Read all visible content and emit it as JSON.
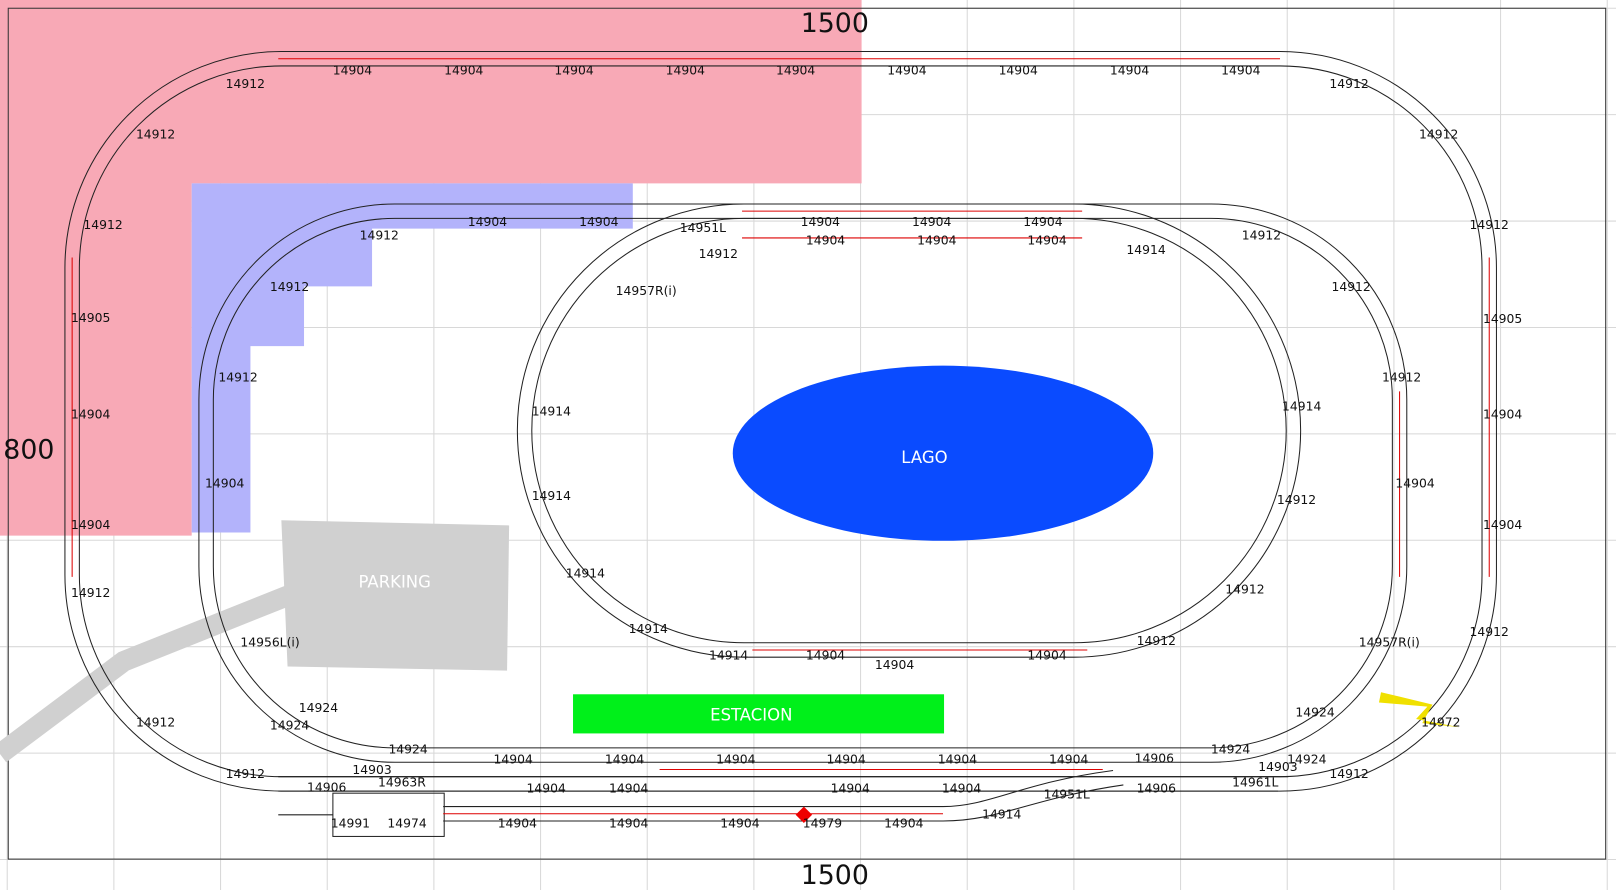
{
  "dimensions": {
    "top": "1500",
    "left": "800",
    "bottom": "1500"
  },
  "areas": {
    "lake": "LAGO",
    "parking": "PARKING",
    "station": "ESTACION"
  },
  "track_labels": [
    "14912",
    "14904",
    "14904",
    "14904",
    "14904",
    "14904",
    "14904",
    "14904",
    "14904",
    "14904",
    "14912",
    "14912",
    "14912",
    "14905",
    "14904",
    "14904",
    "14912",
    "14912",
    "14912",
    "14912",
    "14912",
    "14905",
    "14904",
    "14904",
    "14912",
    "14912",
    "14972",
    "14904",
    "14904",
    "14912",
    "14912",
    "14912",
    "14904",
    "14956L(i)",
    "14924",
    "14924",
    "14924",
    "14912",
    "14912",
    "14912",
    "14904",
    "14957R(i)",
    "14924",
    "14924",
    "14924",
    "14903",
    "14961L",
    "14906",
    "14906",
    "14951L",
    "14904",
    "14904",
    "14904",
    "14904",
    "14904",
    "14904",
    "14912",
    "14914",
    "14957R(i)",
    "14914",
    "14914",
    "14914",
    "14914",
    "14914",
    "14904",
    "14904",
    "14904",
    "14912",
    "14912",
    "14912",
    "14914",
    "14904",
    "14904",
    "14904",
    "14904",
    "14904",
    "14904",
    "14903",
    "14963R",
    "14906",
    "14904",
    "14904",
    "14904",
    "14904",
    "14951L",
    "14914",
    "14991",
    "14974",
    "14904",
    "14904",
    "14904",
    "14979",
    "14904"
  ]
}
